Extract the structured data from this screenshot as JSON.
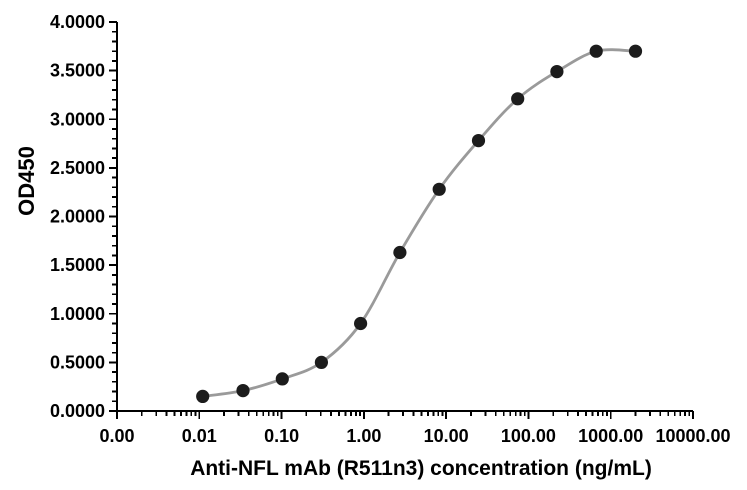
{
  "page": {
    "background_color": "#ffffff",
    "text_color": "#000000"
  },
  "chart_data": {
    "type": "scatter",
    "subtype": "sigmoidal-dose-response-curve",
    "title": "",
    "xlabel": "Anti-NFL mAb (R511n3) concentration (ng/mL)",
    "ylabel": "OD450",
    "x_scale": "log10",
    "ylim": [
      0,
      4
    ],
    "y_major_step": 0.5,
    "y_minor_step": 0.1,
    "grid": false,
    "legend": "none",
    "axis_color": "#000000",
    "x_tick_values": [
      0.001,
      0.01,
      0.1,
      1,
      10,
      100,
      1000,
      10000
    ],
    "x_tick_labels": [
      "0.00",
      "0.01",
      "0.10",
      "1.00",
      "10.00",
      "100.00",
      "1000.00",
      "10000.00"
    ],
    "y_tick_labels": [
      "0.0000",
      "0.5000",
      "1.0000",
      "1.5000",
      "2.0000",
      "2.5000",
      "3.0000",
      "3.5000",
      "4.0000"
    ],
    "marker_radius_px": 6.6,
    "series": [
      {
        "marker": "filled-circle",
        "marker_color": "#1c1c1c",
        "line_color": "#9a9a9a",
        "x": [
          0.011,
          0.034,
          0.102,
          0.305,
          0.914,
          2.74,
          8.23,
          24.7,
          74.1,
          222,
          667,
          2000
        ],
        "y": [
          0.15,
          0.21,
          0.33,
          0.5,
          0.9,
          1.63,
          2.28,
          2.78,
          3.21,
          3.49,
          3.7,
          3.7
        ]
      }
    ]
  }
}
